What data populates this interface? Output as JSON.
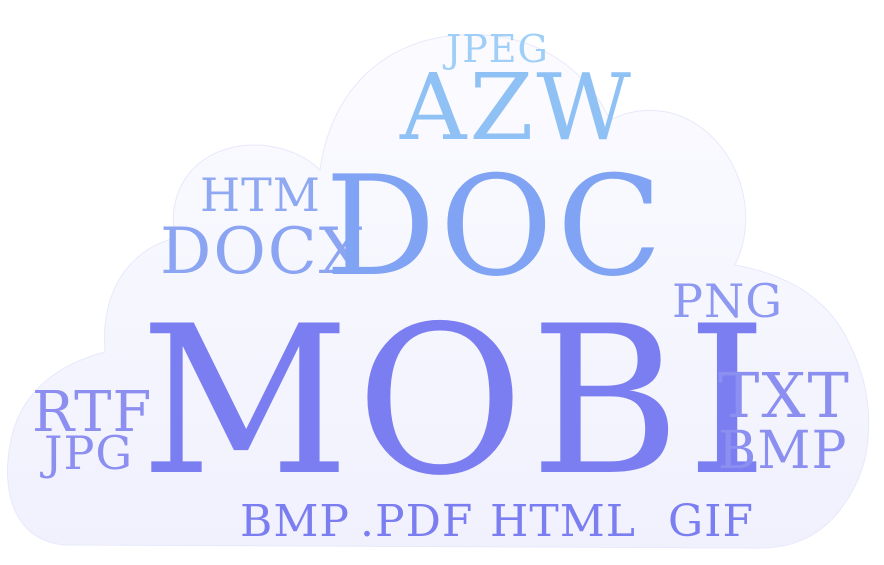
{
  "words": {
    "mobi": {
      "text": "MOBI",
      "color": "#7b7ef0"
    },
    "doc": {
      "text": "DOC",
      "color": "#80a4f3"
    },
    "azw": {
      "text": "AZW",
      "color": "#8fc1f5"
    },
    "jpeg": {
      "text": "JPEG",
      "color": "#9fcff7"
    },
    "htm": {
      "text": "HTM",
      "color": "#8fa8f2"
    },
    "docx": {
      "text": "DOCX",
      "color": "#8ca5f2"
    },
    "png": {
      "text": "PNG",
      "color": "#8d98f1"
    },
    "rtf": {
      "text": "RTF",
      "color": "#8c8ff0"
    },
    "jpg": {
      "text": "JPG",
      "color": "#8c8ff0"
    },
    "txt": {
      "text": "TXT",
      "color": "#8a8ff0"
    },
    "bmp2": {
      "text": "BMP",
      "color": "#8a8ff0"
    },
    "bmp1": {
      "text": "BMP",
      "color": "#7b7ef0"
    },
    "pdf": {
      "text": ".PDF",
      "color": "#7b7ef0"
    },
    "html": {
      "text": "HTML",
      "color": "#7b7ef0"
    },
    "gif": {
      "text": "GIF",
      "color": "#7b7ef0"
    }
  },
  "cloud": {
    "fill_top": "#fbfbff",
    "fill_bottom": "#f1f1fe",
    "edge": "#e7e9fb"
  }
}
